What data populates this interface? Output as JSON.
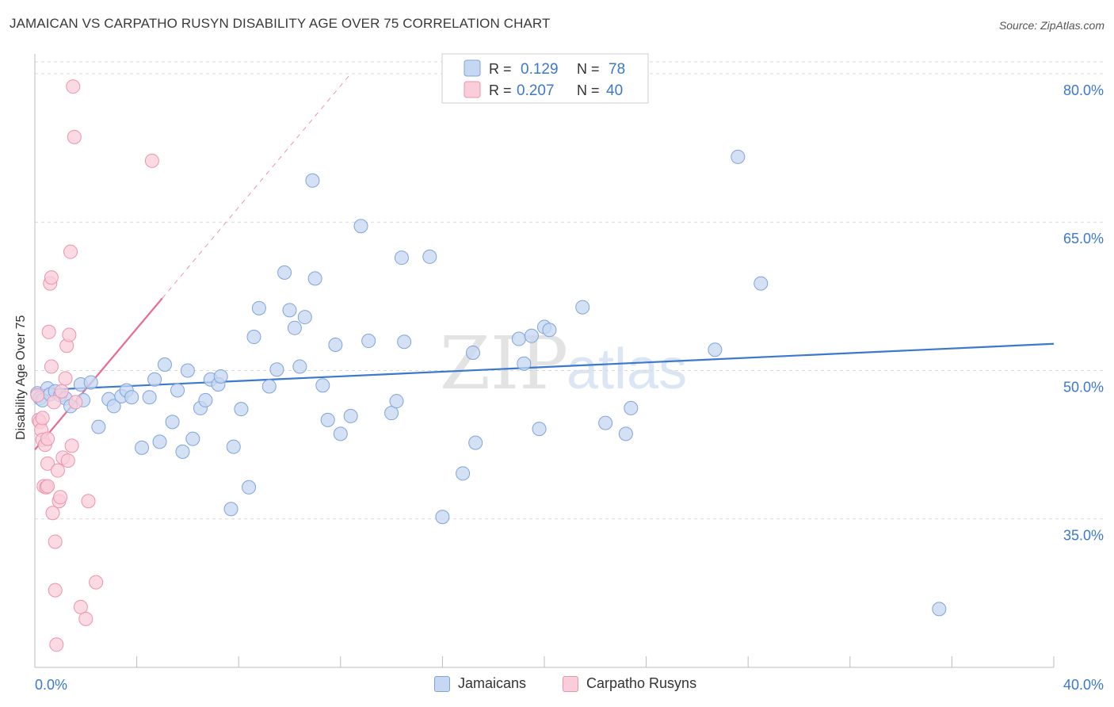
{
  "header": {
    "title": "JAMAICAN VS CARPATHO RUSYN DISABILITY AGE OVER 75 CORRELATION CHART",
    "source": "Source: ZipAtlas.com"
  },
  "watermark": {
    "zip": "ZIP",
    "atlas": "atlas"
  },
  "stats": [
    {
      "r_label": "R =",
      "r_value": "0.129",
      "n_label": "N =",
      "n_value": "78"
    },
    {
      "r_label": "R =",
      "r_value": "0.207",
      "n_label": "N =",
      "n_value": "40"
    }
  ],
  "colors": {
    "blue_fill": "#c5d7f2",
    "blue_stroke": "#7fa3da",
    "blue_line": "#3b78cf",
    "pink_fill": "#f9cdd9",
    "pink_stroke": "#eb93ad",
    "pink_line": "#e76b95",
    "value_text": "#3b78cf",
    "grid": "#d8d8d8"
  },
  "chart_data": {
    "type": "scatter",
    "title": "JAMAICAN VS CARPATHO RUSYN DISABILITY AGE OVER 75 CORRELATION CHART",
    "xlabel": "",
    "ylabel": "Disability Age Over 75",
    "xlim": [
      0,
      40
    ],
    "ylim": [
      20,
      82
    ],
    "x_tick_labels": [
      "0.0%",
      "40.0%"
    ],
    "y_ticks": [
      35,
      50,
      65,
      80
    ],
    "y_tick_labels": [
      "35.0%",
      "50.0%",
      "65.0%",
      "80.0%"
    ],
    "grid": "horizontal dashed",
    "legend_position": "bottom",
    "series": [
      {
        "name": "Jamaicans",
        "color": "#7fa3da",
        "trend": {
          "x": [
            0,
            40
          ],
          "y": [
            48.0,
            52.7
          ]
        },
        "points": [
          [
            0.1,
            47.7
          ],
          [
            0.2,
            47.2
          ],
          [
            0.3,
            47.0
          ],
          [
            0.5,
            48.2
          ],
          [
            0.6,
            47.6
          ],
          [
            0.8,
            47.9
          ],
          [
            1.0,
            47.5
          ],
          [
            1.2,
            47.2
          ],
          [
            1.4,
            46.4
          ],
          [
            1.8,
            48.6
          ],
          [
            1.9,
            47.0
          ],
          [
            2.2,
            48.8
          ],
          [
            2.5,
            44.3
          ],
          [
            2.9,
            47.1
          ],
          [
            3.1,
            46.4
          ],
          [
            3.4,
            47.4
          ],
          [
            3.6,
            48.0
          ],
          [
            3.8,
            47.3
          ],
          [
            4.2,
            42.2
          ],
          [
            4.5,
            47.3
          ],
          [
            4.7,
            49.1
          ],
          [
            4.9,
            42.8
          ],
          [
            5.1,
            50.6
          ],
          [
            5.4,
            44.8
          ],
          [
            5.6,
            48.0
          ],
          [
            5.8,
            41.8
          ],
          [
            6.0,
            50.0
          ],
          [
            6.2,
            43.1
          ],
          [
            6.5,
            46.2
          ],
          [
            6.7,
            47.0
          ],
          [
            6.9,
            49.1
          ],
          [
            7.2,
            48.6
          ],
          [
            7.3,
            49.4
          ],
          [
            7.7,
            36.0
          ],
          [
            7.8,
            42.3
          ],
          [
            8.1,
            46.1
          ],
          [
            8.4,
            38.2
          ],
          [
            8.6,
            53.4
          ],
          [
            8.8,
            56.3
          ],
          [
            9.2,
            48.4
          ],
          [
            9.5,
            50.1
          ],
          [
            9.8,
            59.9
          ],
          [
            10.0,
            56.1
          ],
          [
            10.2,
            54.3
          ],
          [
            10.4,
            50.4
          ],
          [
            10.6,
            55.4
          ],
          [
            10.9,
            69.2
          ],
          [
            11.0,
            59.3
          ],
          [
            11.3,
            48.5
          ],
          [
            11.5,
            45.0
          ],
          [
            11.8,
            52.6
          ],
          [
            12.0,
            43.6
          ],
          [
            12.4,
            45.4
          ],
          [
            12.8,
            64.6
          ],
          [
            13.1,
            53.0
          ],
          [
            14.0,
            45.7
          ],
          [
            14.2,
            46.9
          ],
          [
            14.4,
            61.4
          ],
          [
            14.5,
            52.9
          ],
          [
            15.5,
            61.5
          ],
          [
            16.0,
            35.2
          ],
          [
            16.8,
            39.6
          ],
          [
            17.2,
            51.8
          ],
          [
            17.3,
            42.7
          ],
          [
            19.0,
            53.2
          ],
          [
            19.2,
            50.7
          ],
          [
            19.5,
            53.5
          ],
          [
            19.8,
            44.1
          ],
          [
            20.0,
            54.4
          ],
          [
            20.2,
            54.1
          ],
          [
            21.5,
            56.4
          ],
          [
            22.4,
            44.7
          ],
          [
            23.2,
            43.6
          ],
          [
            23.4,
            46.2
          ],
          [
            26.7,
            52.1
          ],
          [
            27.6,
            71.6
          ],
          [
            28.5,
            58.8
          ],
          [
            35.5,
            25.9
          ]
        ]
      },
      {
        "name": "Carpatho Rusyns",
        "color": "#eb93ad",
        "trend": {
          "x": [
            0,
            5
          ],
          "y": [
            42.0,
            57.3
          ]
        },
        "trend_extension": {
          "x": [
            5,
            12.4
          ],
          "y": [
            57.3,
            80.0
          ]
        },
        "points": [
          [
            0.1,
            47.5
          ],
          [
            0.15,
            45.0
          ],
          [
            0.2,
            44.8
          ],
          [
            0.25,
            44.0
          ],
          [
            0.3,
            45.2
          ],
          [
            0.3,
            43.0
          ],
          [
            0.35,
            38.3
          ],
          [
            0.4,
            42.5
          ],
          [
            0.45,
            38.2
          ],
          [
            0.5,
            40.6
          ],
          [
            0.5,
            38.3
          ],
          [
            0.5,
            43.1
          ],
          [
            0.55,
            53.9
          ],
          [
            0.6,
            58.8
          ],
          [
            0.65,
            59.4
          ],
          [
            0.65,
            50.4
          ],
          [
            0.7,
            35.6
          ],
          [
            0.75,
            46.8
          ],
          [
            0.8,
            32.7
          ],
          [
            0.8,
            27.8
          ],
          [
            0.85,
            22.3
          ],
          [
            0.9,
            39.9
          ],
          [
            0.95,
            36.8
          ],
          [
            1.0,
            37.2
          ],
          [
            1.05,
            47.9
          ],
          [
            1.1,
            41.2
          ],
          [
            1.2,
            49.2
          ],
          [
            1.25,
            52.5
          ],
          [
            1.3,
            40.9
          ],
          [
            1.35,
            53.6
          ],
          [
            1.4,
            62.0
          ],
          [
            1.45,
            42.4
          ],
          [
            1.5,
            78.7
          ],
          [
            1.55,
            73.6
          ],
          [
            1.6,
            46.8
          ],
          [
            1.8,
            26.1
          ],
          [
            2.0,
            24.9
          ],
          [
            2.1,
            36.8
          ],
          [
            2.4,
            28.6
          ],
          [
            4.6,
            71.2
          ]
        ]
      }
    ]
  },
  "legend": {
    "items": [
      "Jamaicans",
      "Carpatho Rusyns"
    ]
  }
}
